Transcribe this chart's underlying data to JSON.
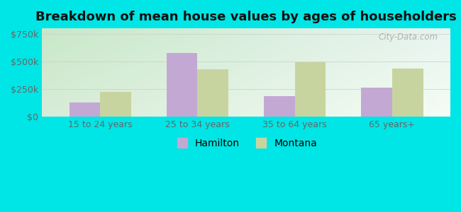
{
  "title": "Breakdown of mean house values by ages of householders",
  "categories": [
    "15 to 24 years",
    "25 to 34 years",
    "35 to 64 years",
    "65 years+"
  ],
  "hamilton_values": [
    125000,
    575000,
    185000,
    260000
  ],
  "montana_values": [
    225000,
    430000,
    495000,
    435000
  ],
  "hamilton_color": "#c4a8d4",
  "montana_color": "#c8d4a0",
  "bg_topleft": "#c8e8c8",
  "bg_topright": "#e8f4f0",
  "bg_bottomleft": "#d8ecd8",
  "bg_bottomright": "#f5fdf5",
  "outer_bg": "#00e5e5",
  "ylim": [
    0,
    800000
  ],
  "yticks": [
    0,
    250000,
    500000,
    750000
  ],
  "ytick_labels": [
    "$0",
    "$250k",
    "$500k",
    "$750k"
  ],
  "bar_width": 0.32,
  "legend_hamilton": "Hamilton",
  "legend_montana": "Montana",
  "title_fontsize": 13,
  "tick_fontsize": 9
}
